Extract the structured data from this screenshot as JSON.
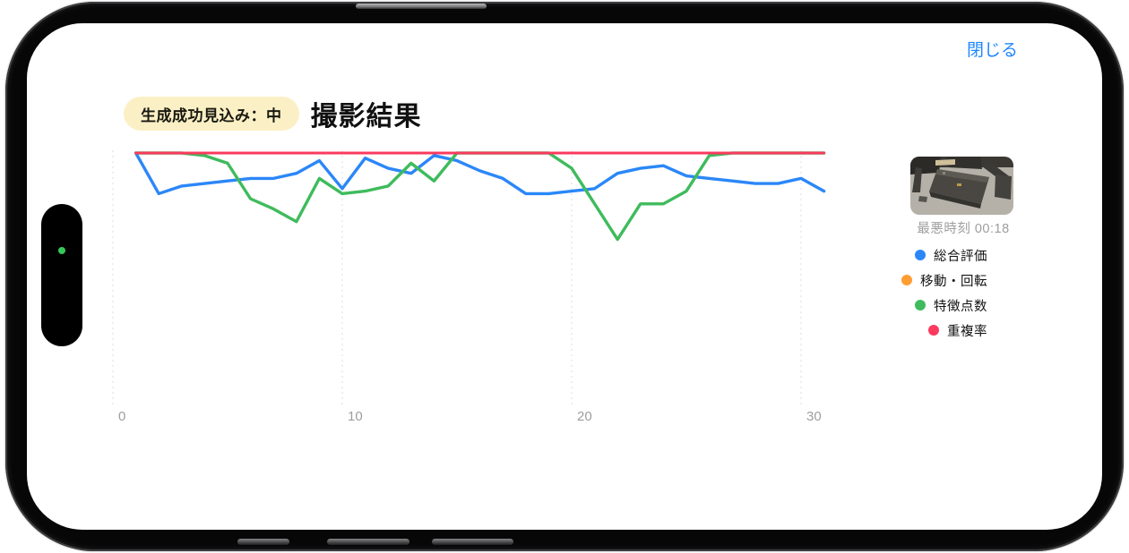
{
  "phone": {
    "close_label": "閉じる",
    "close_color": "#1E86FF",
    "camera_indicator_color": "#35C759"
  },
  "header": {
    "badge_label": "生成成功見込み：中",
    "badge_bg": "#FBF0C5",
    "title": "撮影結果"
  },
  "thumbnail": {
    "caption": "最悪時刻 00:18"
  },
  "legend": {
    "items": [
      {
        "label": "総合評価",
        "color": "#2B87F8"
      },
      {
        "label": "移動・回転",
        "color": "#FF9D33"
      },
      {
        "label": "特徴点数",
        "color": "#3FBB5C"
      },
      {
        "label": "重複率",
        "color": "#FA3A5E"
      }
    ]
  },
  "chart_data": {
    "type": "line",
    "title": "撮影結果",
    "xlabel": "",
    "ylabel": "",
    "xlim": [
      0,
      31
    ],
    "ylim": [
      0,
      100
    ],
    "x_ticks": [
      0,
      10,
      20,
      30
    ],
    "grid": "vertical-dashed",
    "legend_position": "right",
    "x": [
      1,
      2,
      3,
      4,
      5,
      6,
      7,
      8,
      9,
      10,
      11,
      12,
      13,
      14,
      15,
      16,
      17,
      18,
      19,
      20,
      21,
      22,
      23,
      24,
      25,
      26,
      27,
      28,
      29,
      30,
      31
    ],
    "series": [
      {
        "name": "総合評価",
        "color": "#2B87F8",
        "width": 3.4,
        "values": [
          100,
          84,
          87,
          88,
          89,
          90,
          90,
          92,
          97,
          86,
          98,
          94,
          92,
          99,
          97,
          93,
          90,
          84,
          84,
          85,
          86,
          92,
          94,
          95,
          91,
          90,
          89,
          88,
          88,
          90,
          85
        ]
      },
      {
        "name": "移動・回転",
        "color": "#FF9D33",
        "width": 3,
        "values": [
          100,
          100,
          100,
          100,
          100,
          100,
          100,
          100,
          100,
          100,
          100,
          100,
          100,
          100,
          100,
          100,
          100,
          100,
          100,
          100,
          100,
          100,
          100,
          100,
          100,
          100,
          100,
          100,
          100,
          100,
          100
        ]
      },
      {
        "name": "特徴点数",
        "color": "#3FBB5C",
        "width": 3.4,
        "values": [
          100,
          100,
          100,
          99,
          96,
          82,
          78,
          73,
          90,
          84,
          85,
          87,
          96,
          89,
          100,
          100,
          100,
          100,
          100,
          94,
          80,
          66,
          80,
          80,
          85,
          99,
          100,
          100,
          100,
          100,
          100
        ]
      },
      {
        "name": "重複率",
        "color": "#FA3A5E",
        "width": 3,
        "values": [
          100,
          100,
          100,
          100,
          100,
          100,
          100,
          100,
          100,
          100,
          100,
          100,
          100,
          100,
          100,
          100,
          100,
          100,
          100,
          100,
          100,
          100,
          100,
          100,
          100,
          100,
          100,
          100,
          100,
          100,
          100
        ]
      }
    ],
    "draw_order": [
      "移動・回転",
      "総合評価",
      "特徴点数",
      "重複率"
    ]
  }
}
